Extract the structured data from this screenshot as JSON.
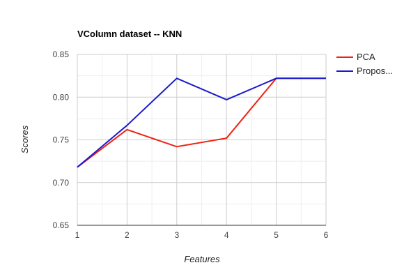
{
  "chart_data": {
    "type": "line",
    "title": "VColumn dataset -- KNN",
    "xlabel": "Features",
    "ylabel": "Scores",
    "x": [
      1,
      2,
      3,
      4,
      5,
      6
    ],
    "x_ticks": [
      "1",
      "2",
      "3",
      "4",
      "5",
      "6"
    ],
    "xlim": [
      1,
      6
    ],
    "ylim": [
      0.65,
      0.85
    ],
    "y_ticks": [
      "0.65",
      "0.70",
      "0.75",
      "0.80",
      "0.85"
    ],
    "grid": true,
    "legend_position": "right",
    "series": [
      {
        "name": "PCA",
        "color": "#ee2211",
        "values": [
          0.718,
          0.762,
          0.742,
          0.752,
          0.822,
          0.822
        ]
      },
      {
        "name": "Propos...",
        "color": "#1a1acc",
        "values": [
          0.718,
          0.767,
          0.822,
          0.797,
          0.822,
          0.822
        ]
      }
    ]
  }
}
